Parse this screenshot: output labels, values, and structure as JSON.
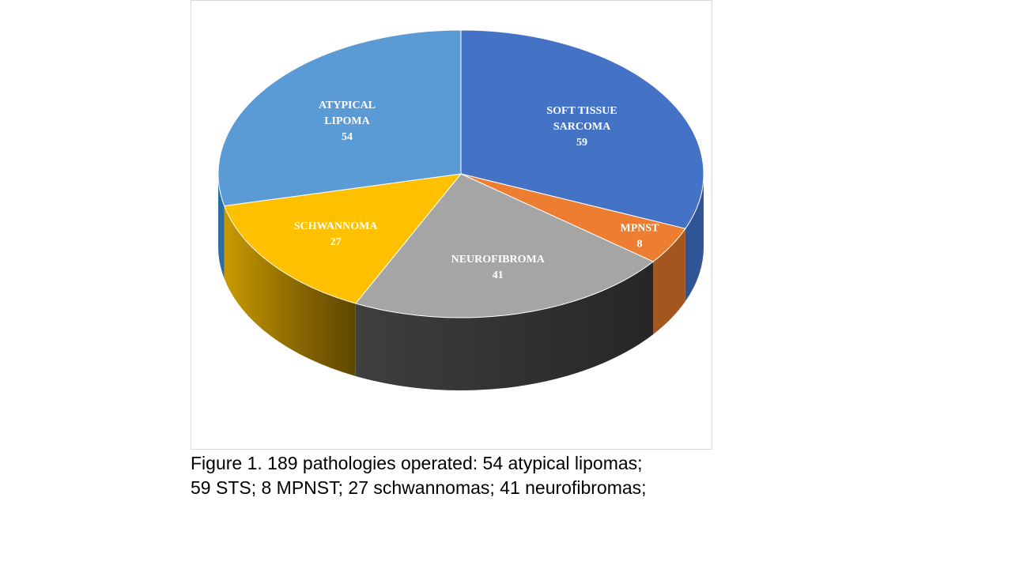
{
  "chart_data": {
    "type": "pie",
    "style": "3d",
    "slices": [
      {
        "label_lines": [
          "SOFT TISSUE",
          "SARCOMA"
        ],
        "value": 59,
        "color": "#4472c4",
        "side_color": "#2f5597"
      },
      {
        "label_lines": [
          "MPNST"
        ],
        "value": 8,
        "color": "#ed7d31",
        "side_color": "#a4561f"
      },
      {
        "label_lines": [
          "NEUROFIBROMA"
        ],
        "value": 41,
        "color": "#a5a5a5",
        "side_color": "#404040"
      },
      {
        "label_lines": [
          "SCHWANNOMA"
        ],
        "value": 27,
        "color": "#ffc000",
        "side_color": "#7f6000"
      },
      {
        "label_lines": [
          "ATYPICAL",
          "LIPOMA"
        ],
        "value": 54,
        "color": "#5b9bd5",
        "side_color": "#2e6ca4"
      }
    ]
  },
  "caption": {
    "line1": "Figure 1. 189 pathologies operated: 54 atypical lipomas;",
    "line2": "59 STS; 8 MPNST; 27 schwannomas; 41 neurofibromas;"
  }
}
